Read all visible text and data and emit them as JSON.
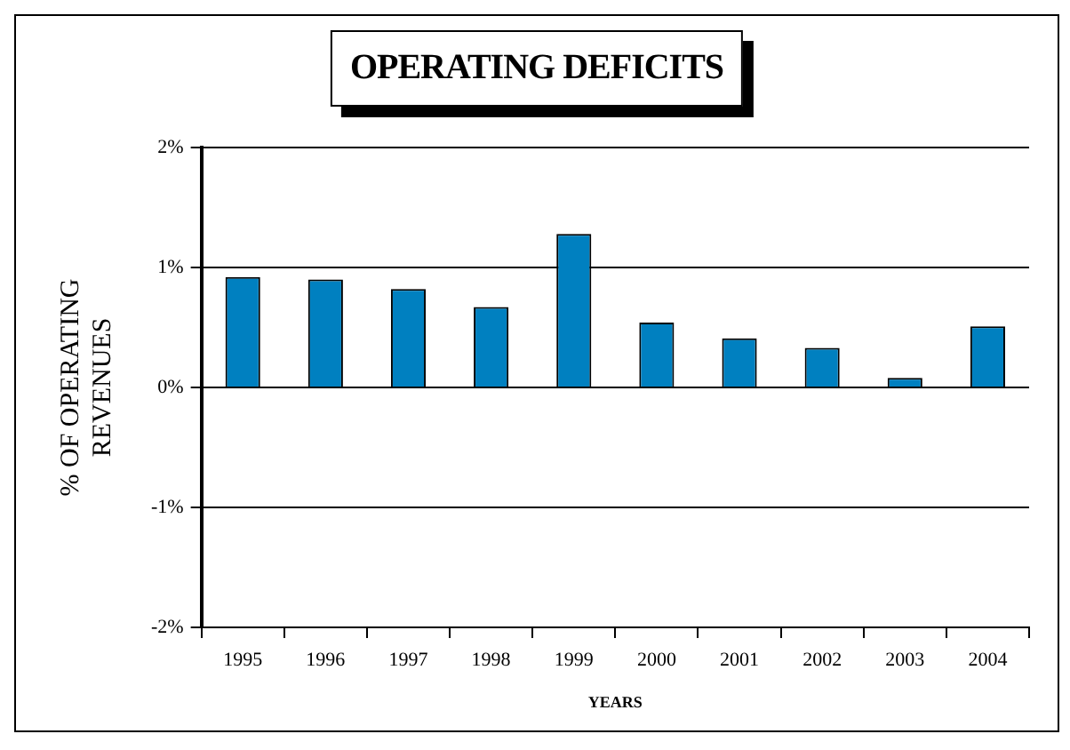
{
  "chart_data": {
    "type": "bar",
    "title": "OPERATING DEFICITS",
    "xlabel": "YEARS",
    "ylabel": "% OF OPERATING REVENUES",
    "categories": [
      "1995",
      "1996",
      "1997",
      "1998",
      "1999",
      "2000",
      "2001",
      "2002",
      "2003",
      "2004"
    ],
    "values": [
      0.92,
      0.9,
      0.82,
      0.67,
      1.28,
      0.54,
      0.41,
      0.33,
      0.08,
      0.51
    ],
    "color": "#0080c0",
    "ylim": [
      -2,
      2
    ],
    "yticks": [
      {
        "value": -2,
        "label": "-2%"
      },
      {
        "value": -1,
        "label": "-1%"
      },
      {
        "value": 0,
        "label": "0%"
      },
      {
        "value": 1,
        "label": "1%"
      },
      {
        "value": 2,
        "label": "2%"
      }
    ],
    "grid": "y"
  }
}
